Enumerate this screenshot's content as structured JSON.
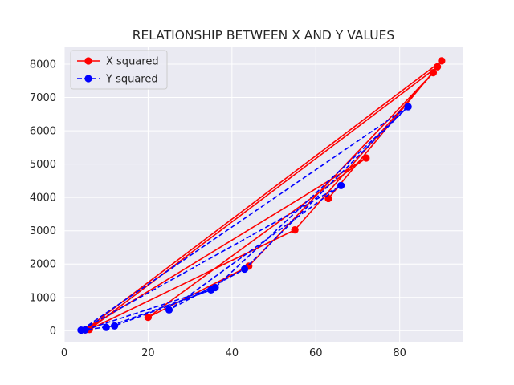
{
  "chart_data": {
    "type": "line",
    "title": "RELATIONSHIP BETWEEN X AND Y VALUES",
    "xlabel": "",
    "ylabel": "",
    "xlim": [
      0,
      95
    ],
    "ylim": [
      -330,
      8530
    ],
    "xticks": [
      0,
      20,
      40,
      60,
      80
    ],
    "yticks": [
      0,
      1000,
      2000,
      3000,
      4000,
      5000,
      6000,
      7000,
      8000
    ],
    "grid": true,
    "legend_position": "top-left",
    "series": [
      {
        "name": "X squared",
        "color": "#ff0000",
        "line_style": "solid",
        "marker": "circle",
        "x": [
          90,
          5,
          72,
          20,
          44,
          88,
          55,
          6,
          89,
          63
        ],
        "y": [
          8100,
          25,
          5184,
          400,
          1936,
          7744,
          3025,
          36,
          7921,
          3969
        ]
      },
      {
        "name": "Y squared",
        "color": "#0000ff",
        "line_style": "dashed",
        "marker": "circle",
        "x": [
          82,
          4,
          66,
          25,
          43,
          82,
          36,
          5,
          12,
          35,
          10
        ],
        "y": [
          6724,
          16,
          4356,
          625,
          1849,
          6724,
          1296,
          25,
          144,
          1225,
          100
        ]
      }
    ]
  }
}
